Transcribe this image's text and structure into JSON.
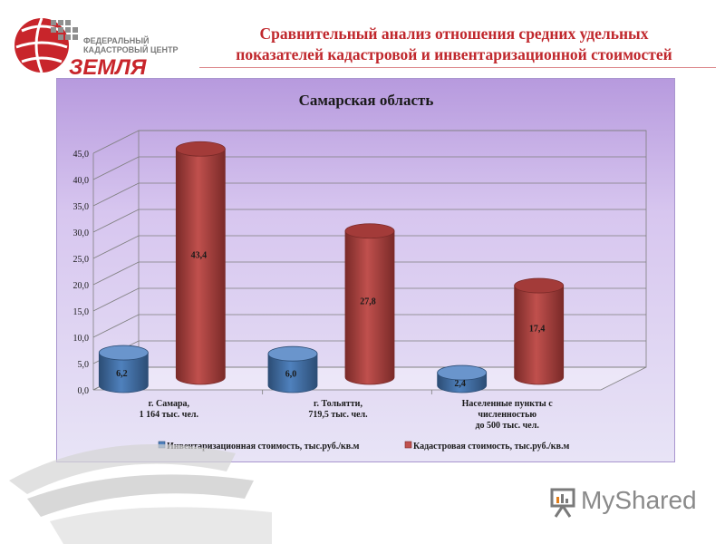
{
  "header": {
    "logo_line1": "ФЕДЕРАЛЬНЫЙ",
    "logo_line2": "КАДАСТРОВЫЙ ЦЕНТР",
    "logo_word": "ЗЕМЛЯ",
    "title_line1": "Сравнительный анализ отношения средних удельных",
    "title_line2": "показателей кадастровой и инвентаризационной стоимостей"
  },
  "colors": {
    "title": "#c0282d",
    "series_blue": "#4f81bd",
    "series_red": "#c0504d"
  },
  "chart_data": {
    "type": "bar",
    "title": "Самарская область",
    "categories": [
      [
        "г. Самара,",
        "1 164 тыс. чел."
      ],
      [
        "г. Тольятти,",
        "719,5 тыс. чел."
      ],
      [
        "Населенные пункты с",
        "численностью",
        "до 500 тыс. чел."
      ]
    ],
    "series": [
      {
        "name": "Инвентаризационная стоимость, тыс.руб./кв.м",
        "values": [
          6.2,
          6.0,
          2.4
        ],
        "labels": [
          "6,2",
          "6,0",
          "2,4"
        ]
      },
      {
        "name": "Кадастровая стоимость, тыс.руб./кв.м",
        "values": [
          43.4,
          27.8,
          17.4
        ],
        "labels": [
          "43,4",
          "27,8",
          "17,4"
        ]
      }
    ],
    "ylim": [
      0,
      45
    ],
    "yticks": [
      "0,0",
      "5,0",
      "10,0",
      "15,0",
      "20,0",
      "25,0",
      "30,0",
      "35,0",
      "40,0",
      "45,0"
    ],
    "grid": true,
    "legend": "bottom",
    "style": "3d-cylinder"
  },
  "footer": {
    "brand_main": "My",
    "brand_rest": "Shared"
  }
}
